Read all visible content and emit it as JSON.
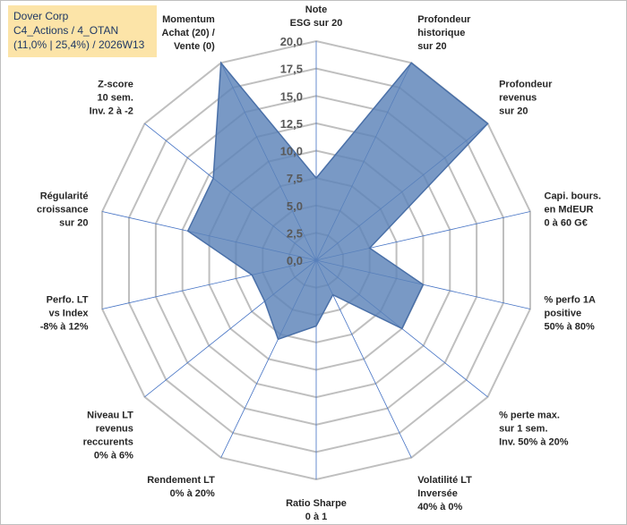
{
  "header": {
    "line1": "Dover Corp",
    "line2": "C4_Actions / 4_OTAN",
    "line3": "(11,0% | 25,4%) / 2026W13"
  },
  "chart_data": {
    "type": "radar",
    "title": "Dover Corp",
    "range": [
      0,
      20
    ],
    "ticks": [
      "0,0",
      "2,5",
      "5,0",
      "7,5",
      "10,0",
      "12,5",
      "15,0",
      "17,5",
      "20,0"
    ],
    "tick_values": [
      0,
      2.5,
      5,
      7.5,
      10,
      12.5,
      15,
      17.5,
      20
    ],
    "axes": [
      {
        "label": [
          "Note",
          "ESG sur 20"
        ],
        "value": 7.5
      },
      {
        "label": [
          "Profondeur",
          "historique",
          "sur 20"
        ],
        "value": 20
      },
      {
        "label": [
          "Profondeur",
          "revenus",
          "sur 20"
        ],
        "value": 20
      },
      {
        "label": [
          "Capi. bours.",
          "en MdEUR",
          "0 à 60 G€"
        ],
        "value": 5
      },
      {
        "label": [
          "% perfo 1A",
          "positive",
          "50% à 80%"
        ],
        "value": 10
      },
      {
        "label": [
          "% perte max.",
          "sur 1 sem.",
          "Inv. 50% à 20%"
        ],
        "value": 10
      },
      {
        "label": [
          "Volatilité LT",
          "Inversée",
          "40% à 0%"
        ],
        "value": 3.5
      },
      {
        "label": [
          "Ratio Sharpe",
          "0 à 1"
        ],
        "value": 6
      },
      {
        "label": [
          "Rendement LT",
          "0% à 20%"
        ],
        "value": 8
      },
      {
        "label": [
          "Niveau LT",
          "revenus",
          "reccurents",
          "0% à 6%"
        ],
        "value": 6
      },
      {
        "label": [
          "Perfo. LT",
          "vs Index",
          "-8% à 12%"
        ],
        "value": 6
      },
      {
        "label": [
          "Régularité",
          "croissance",
          "sur 20"
        ],
        "value": 12
      },
      {
        "label": [
          "Z-score",
          "10 sem.",
          "Inv. 2 à -2"
        ],
        "value": 12
      },
      {
        "label": [
          "Momentum",
          "Achat (20) /",
          "Vente (0)"
        ],
        "value": 20
      }
    ],
    "colors": {
      "area": "#5b82b8",
      "grid": "#bfbfbf",
      "spoke": "#4472c4"
    }
  }
}
